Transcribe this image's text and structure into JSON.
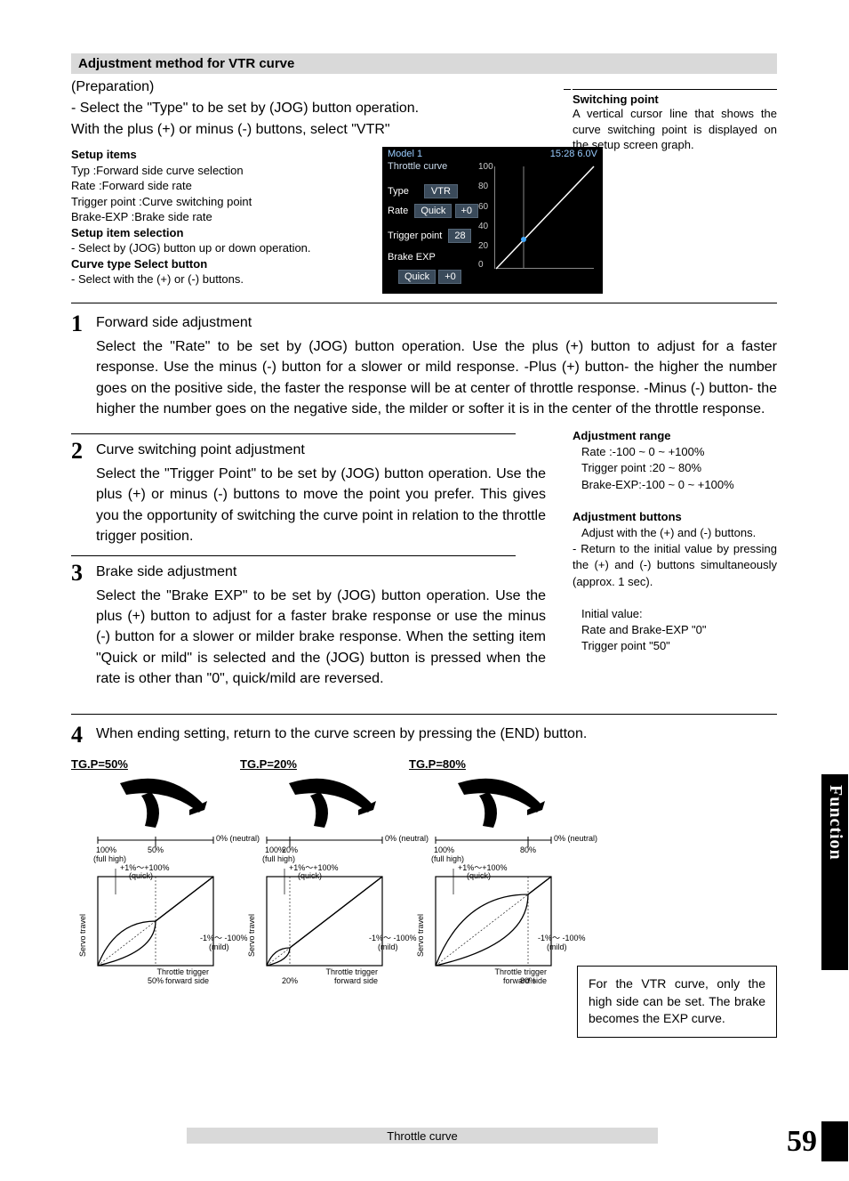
{
  "header": "Adjustment method for VTR curve",
  "preparation_label": "(Preparation)",
  "intro_lines": [
    "- Select the \"Type\" to be set by (JOG) button operation.",
    "With the plus (+) or minus (-) buttons, select \"VTR\""
  ],
  "switching_point": {
    "title": "Switching point",
    "body": "A vertical cursor line that shows the curve switching point is displayed on the setup screen graph."
  },
  "setup": {
    "items_title": "Setup items",
    "items": [
      "Typ :Forward side curve selection",
      "Rate :Forward side rate",
      "Trigger point :Curve switching  point",
      "Brake-EXP :Brake side rate"
    ],
    "item_selection_title": "Setup item selection",
    "item_selection_body": "- Select by (JOG) button up or down operation.",
    "curve_type_title": "Curve type Select button",
    "curve_type_body": "- Select with the (+) or (-) buttons."
  },
  "screen": {
    "model": "Model 1",
    "clock": "15:28 6.0V",
    "title": "Throttle curve",
    "type_label": "Type",
    "type_value": "VTR",
    "rate_label": "Rate",
    "rate_mode": "Quick",
    "rate_value": "+0",
    "trigger_label": "Trigger point",
    "trigger_value": "28",
    "brake_label": "Brake EXP",
    "brake_mode": "Quick",
    "brake_value": "+0",
    "y_ticks": [
      "100",
      "80",
      "60",
      "40",
      "20",
      "0"
    ]
  },
  "steps": {
    "s1_title": "Forward side adjustment",
    "s1_body": "Select the \"Rate\" to be set by (JOG) button operation.  Use the plus (+) button to adjust for a faster response.  Use the minus (-) button for a slower or mild response. -Plus (+) button- the higher the number goes on the positive side, the faster the response will be at center of throttle response. -Minus (-) button- the higher the number goes on the negative side, the milder or softer it is in the center of the throttle response.",
    "s2_title": "Curve switching point adjustment",
    "s2_body": "Select the \"Trigger Point\" to be set by (JOG) button operation.   Use the plus (+) or minus (-) buttons to move the point you prefer.  This gives you the opportunity of switching the curve point in relation to the throttle trigger position.",
    "s3_title": "Brake side adjustment",
    "s3_body": "Select the \"Brake EXP\" to be set by (JOG) button operation. Use the plus (+) button to adjust for a faster brake response or use the minus (-) button for a slower or milder brake response. When the setting item \"Quick or mild\" is selected and the (JOG) button is pressed when the rate is other than \"0\", quick/mild are reversed.",
    "s4_body": "When ending setting, return to the curve screen by pressing the (END) button."
  },
  "adj_range": {
    "title": "Adjustment range",
    "lines": [
      "Rate :-100 ~ 0 ~ +100%",
      "Trigger point :20 ~ 80%",
      "Brake-EXP:-100 ~ 0 ~ +100%"
    ]
  },
  "adj_buttons": {
    "title": "Adjustment buttons",
    "body1": "Adjust with the (+) and (-) buttons.",
    "body2": "- Return to the initial value by pressing the (+) and (-) buttons simultaneously (approx. 1 sec).",
    "initial_label": "Initial value:",
    "initial_body": "Rate and  Brake-EXP \"0\"\nTrigger point \"50\""
  },
  "diagrams": [
    {
      "label": "TG.P=50%",
      "tg": 50
    },
    {
      "label": "TG.P=20%",
      "tg": 20
    },
    {
      "label": "TG.P=80%",
      "tg": 80
    }
  ],
  "diag_labels": {
    "neutral": "0% (neutral)",
    "full_high": "(full high)",
    "hundred": "100%",
    "quick": "+1%～+100%\n(quick)",
    "mild": "-1%～ -100%\n(mild)",
    "servo": "Servo travel",
    "trigger": "Throttle trigger\nforward side"
  },
  "note_box": "For the VTR curve, only the high side can be set. The brake becomes the EXP curve.",
  "side_tab": "Function",
  "footer_label": "Throttle curve",
  "page_number": "59"
}
